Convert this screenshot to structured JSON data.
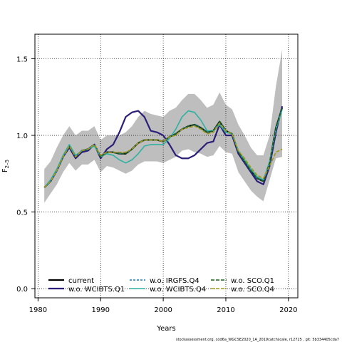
{
  "chart_data": {
    "type": "line",
    "xlabel": "Years",
    "ylabel": "F",
    "ylabel_sub": "2–5",
    "xlim": [
      1979.5,
      2021.5
    ],
    "ylim": [
      -0.06,
      1.66
    ],
    "xticks": [
      1980,
      1990,
      2000,
      2010,
      2020
    ],
    "yticks": [
      0.0,
      0.5,
      1.0,
      1.5
    ],
    "ytick_labels": [
      "0.0",
      "0.5",
      "1.0",
      "1.5"
    ],
    "grid": "dotted",
    "legend_position": "bottom-left",
    "band": {
      "x": [
        1981,
        1982,
        1983,
        1984,
        1985,
        1986,
        1987,
        1988,
        1989,
        1990,
        1991,
        1992,
        1993,
        1994,
        1995,
        1996,
        1997,
        1998,
        1999,
        2000,
        2001,
        2002,
        2003,
        2004,
        2005,
        2006,
        2007,
        2008,
        2009,
        2010,
        2011,
        2012,
        2013,
        2014,
        2015,
        2016,
        2017,
        2018,
        2019
      ],
      "upper": [
        0.78,
        0.83,
        0.92,
        1.0,
        1.06,
        1.0,
        1.03,
        1.03,
        1.06,
        0.97,
        1.0,
        1.0,
        1.0,
        1.02,
        1.06,
        1.12,
        1.16,
        1.14,
        1.13,
        1.12,
        1.16,
        1.18,
        1.23,
        1.27,
        1.27,
        1.23,
        1.18,
        1.2,
        1.28,
        1.2,
        1.17,
        1.07,
        1.0,
        0.92,
        0.87,
        0.87,
        1.0,
        1.32,
        1.56
      ],
      "lower": [
        0.56,
        0.62,
        0.68,
        0.76,
        0.82,
        0.77,
        0.81,
        0.81,
        0.84,
        0.76,
        0.8,
        0.79,
        0.77,
        0.75,
        0.77,
        0.81,
        0.83,
        0.83,
        0.83,
        0.82,
        0.84,
        0.86,
        0.9,
        0.91,
        0.89,
        0.88,
        0.86,
        0.87,
        0.93,
        0.89,
        0.88,
        0.76,
        0.7,
        0.64,
        0.6,
        0.57,
        0.71,
        0.85,
        0.86
      ],
      "color": "#bebebe"
    },
    "series": [
      {
        "name": "current",
        "color": "#000000",
        "width": 2.2,
        "dash": "",
        "values": [
          0.66,
          0.7,
          0.77,
          0.86,
          0.93,
          0.86,
          0.9,
          0.91,
          0.94,
          0.86,
          0.89,
          0.89,
          0.88,
          0.88,
          0.91,
          0.95,
          0.97,
          0.97,
          0.97,
          0.96,
          0.99,
          1.01,
          1.04,
          1.06,
          1.07,
          1.05,
          1.02,
          1.03,
          1.09,
          1.03,
          1.01,
          0.89,
          0.83,
          0.77,
          0.72,
          0.7,
          0.82,
          1.05,
          1.18
        ]
      },
      {
        "name": "w.o. WCIBTS.Q1",
        "color": "#2a1f78",
        "width": 2.2,
        "dash": "",
        "values": [
          0.66,
          0.7,
          0.77,
          0.86,
          0.92,
          0.85,
          0.89,
          0.9,
          0.94,
          0.85,
          0.91,
          0.94,
          1.02,
          1.12,
          1.15,
          1.16,
          1.12,
          1.03,
          1.02,
          1.0,
          0.94,
          0.87,
          0.85,
          0.85,
          0.87,
          0.91,
          0.95,
          0.96,
          1.07,
          1.0,
          1.0,
          0.88,
          0.82,
          0.76,
          0.7,
          0.68,
          0.8,
          1.02,
          1.19
        ]
      },
      {
        "name": "w.o. IRGFS.Q4",
        "color": "#1f78b4",
        "width": 1.6,
        "dash": "3,2",
        "values": [
          0.66,
          0.7,
          0.77,
          0.86,
          0.93,
          0.86,
          0.9,
          0.91,
          0.94,
          0.86,
          0.89,
          0.89,
          0.88,
          0.88,
          0.91,
          0.95,
          0.97,
          0.97,
          0.97,
          0.96,
          0.99,
          1.01,
          1.04,
          1.06,
          1.07,
          1.05,
          1.02,
          1.03,
          1.09,
          1.03,
          1.01,
          0.89,
          0.83,
          0.77,
          0.72,
          0.7,
          0.82,
          1.05,
          1.18
        ]
      },
      {
        "name": "w.o. WCIBTS.Q4",
        "color": "#2fb1a1",
        "width": 1.6,
        "dash": "",
        "values": [
          0.66,
          0.71,
          0.78,
          0.87,
          0.94,
          0.87,
          0.9,
          0.91,
          0.93,
          0.86,
          0.88,
          0.87,
          0.84,
          0.82,
          0.84,
          0.88,
          0.93,
          0.94,
          0.94,
          0.94,
          0.98,
          1.04,
          1.12,
          1.16,
          1.15,
          1.1,
          1.03,
          1.03,
          1.07,
          1.02,
          1.01,
          0.9,
          0.84,
          0.78,
          0.73,
          0.71,
          0.83,
          1.04,
          1.17
        ]
      },
      {
        "name": "w.o. SCO.Q1",
        "color": "#1d5e1d",
        "width": 1.6,
        "dash": "5,2",
        "values": [
          0.66,
          0.7,
          0.77,
          0.86,
          0.93,
          0.86,
          0.9,
          0.91,
          0.94,
          0.86,
          0.89,
          0.89,
          0.88,
          0.88,
          0.91,
          0.95,
          0.97,
          0.97,
          0.97,
          0.96,
          0.99,
          1.01,
          1.04,
          1.06,
          1.07,
          1.05,
          1.02,
          1.03,
          1.09,
          1.03,
          1.01,
          0.89,
          0.83,
          0.77,
          0.72,
          0.7,
          0.82,
          1.05,
          1.18
        ]
      },
      {
        "name": "w.o. SCO.Q4",
        "color": "#a39a1c",
        "width": 1.6,
        "dash": "5,2",
        "values": [
          0.66,
          0.7,
          0.77,
          0.86,
          0.93,
          0.86,
          0.9,
          0.91,
          0.94,
          0.87,
          0.89,
          0.89,
          0.89,
          0.89,
          0.91,
          0.95,
          0.97,
          0.97,
          0.97,
          0.96,
          0.99,
          1.0,
          1.04,
          1.05,
          1.06,
          1.04,
          1.01,
          1.02,
          1.08,
          1.03,
          1.01,
          0.9,
          0.85,
          0.79,
          0.74,
          0.72,
          0.8,
          0.89,
          0.91
        ]
      }
    ],
    "x": [
      1981,
      1982,
      1983,
      1984,
      1985,
      1986,
      1987,
      1988,
      1989,
      1990,
      1991,
      1992,
      1993,
      1994,
      1995,
      1996,
      1997,
      1998,
      1999,
      2000,
      2001,
      2002,
      2003,
      2004,
      2005,
      2006,
      2007,
      2008,
      2009,
      2010,
      2011,
      2012,
      2013,
      2014,
      2015,
      2016,
      2017,
      2018,
      2019
    ],
    "legend": {
      "columns": [
        [
          "current",
          "w.o. WCIBTS.Q1"
        ],
        [
          "w.o. IRGFS.Q4",
          "w.o. WCIBTS.Q4"
        ],
        [
          "w.o. SCO.Q1",
          "w.o. SCO.Q4"
        ]
      ]
    },
    "caption": "stockassessment.org,  cod6a_WGCSE2020_1A_2019catchscale,  r12725 ,  git: 5b334405cda7"
  }
}
